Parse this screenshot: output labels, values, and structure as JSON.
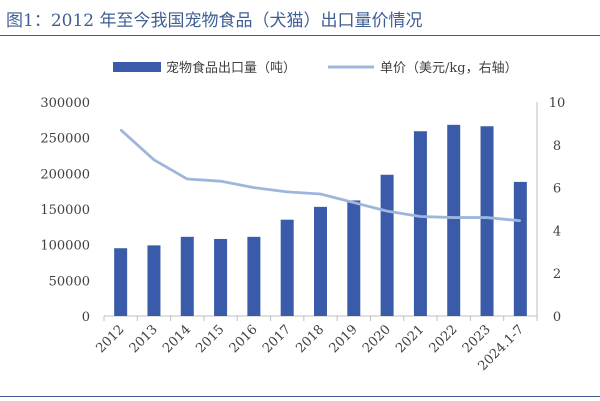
{
  "title": "图1：2012 年至今我国宠物食品（犬猫）出口量价情况",
  "colors": {
    "bar": "#3a5ba9",
    "line": "#9fb6dc",
    "title": "#3f5f94",
    "axis": "#bfbfbf"
  },
  "chart_data": {
    "type": "bar+line",
    "categories": [
      "2012",
      "2013",
      "2014",
      "2015",
      "2016",
      "2017",
      "2018",
      "2019",
      "2020",
      "2021",
      "2022",
      "2023",
      "2024.1-7"
    ],
    "series": [
      {
        "name": "宠物食品出口量（吨）",
        "type": "bar",
        "axis": "left",
        "values": [
          95000,
          99000,
          111000,
          108000,
          111000,
          135000,
          153000,
          162000,
          198000,
          259000,
          268000,
          266000,
          188000
        ]
      },
      {
        "name": "单价（美元/kg，右轴）",
        "type": "line",
        "axis": "right",
        "values": [
          8.7,
          7.3,
          6.4,
          6.3,
          6.0,
          5.8,
          5.7,
          5.3,
          4.9,
          4.65,
          4.6,
          4.6,
          4.45
        ]
      }
    ],
    "y_left": {
      "ylim": [
        0,
        300000
      ],
      "ticks": [
        0,
        50000,
        100000,
        150000,
        200000,
        250000,
        300000
      ]
    },
    "y_right": {
      "ylim": [
        0,
        10
      ],
      "ticks": [
        0,
        2,
        4,
        6,
        8,
        10
      ]
    },
    "legend": "top",
    "grid": false
  }
}
